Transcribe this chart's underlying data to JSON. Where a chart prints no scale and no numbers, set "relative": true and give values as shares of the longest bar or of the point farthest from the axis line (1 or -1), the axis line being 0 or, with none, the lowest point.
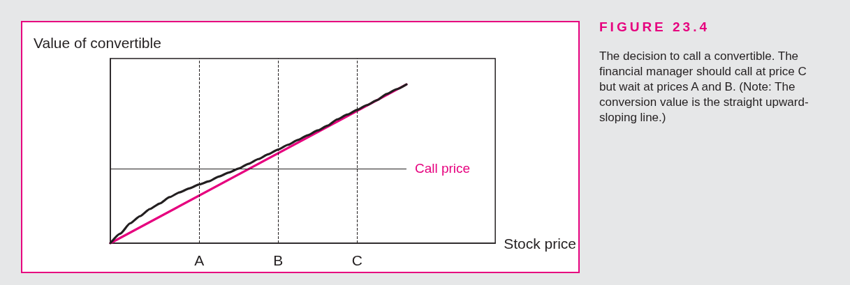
{
  "chart_data": {
    "type": "line",
    "title": "FIGURE 23.4",
    "subtitle": "The decision to call a convertible. The financial manager should call at price C but wait at prices A and B. (Note: The conversion value is the straight upward-sloping line.)",
    "xlabel": "Stock price",
    "ylabel": "Value of convertible",
    "relative": true,
    "categories": [
      null,
      null,
      null,
      null,
      null,
      null,
      null,
      null,
      null,
      "A",
      null,
      null,
      null,
      null,
      null,
      null,
      null,
      "B",
      null,
      null,
      null,
      null,
      null,
      null,
      null,
      "C",
      null,
      null,
      null,
      null,
      null,
      null,
      null,
      null,
      null,
      null,
      null,
      null,
      null,
      null
    ],
    "tick_labels": "x",
    "marker": "none",
    "line_style": "solid",
    "series": [
      {
        "color": "#e6007e",
        "values": [
          0,
          null,
          null,
          null,
          null,
          null,
          null,
          null,
          null,
          null,
          null,
          null,
          null,
          null,
          null,
          null,
          null,
          null,
          null,
          null,
          null,
          null,
          null,
          null,
          null,
          null,
          null,
          null,
          null,
          null,
          1,
          null,
          null,
          null,
          null,
          null,
          null,
          null,
          null,
          null
        ]
      },
      {
        "color": "#231f20",
        "values": [
          0,
          0.06,
          0.125,
          0.17,
          0.215,
          0.25,
          0.29,
          0.32,
          0.345,
          0.37,
          0.39,
          0.42,
          0.445,
          0.47,
          0.5,
          0.53,
          0.56,
          0.59,
          0.62,
          0.65,
          0.68,
          0.71,
          0.74,
          0.78,
          0.81,
          0.84,
          0.87,
          0.9,
          0.94,
          0.97,
          1,
          null,
          null,
          null,
          null,
          null,
          null,
          null,
          null,
          null
        ]
      }
    ],
    "ref_lines": [
      {
        "axis": "x",
        "value": "A",
        "line_style": "dashed",
        "color": "#231f20"
      },
      {
        "axis": "x",
        "value": "B",
        "line_style": "dashed",
        "color": "#231f20"
      },
      {
        "axis": "x",
        "value": "C",
        "line_style": "dashed",
        "color": "#231f20"
      },
      {
        "axis": "y",
        "value": 0.47,
        "label": "Call price",
        "color": "#231f20"
      }
    ]
  }
}
